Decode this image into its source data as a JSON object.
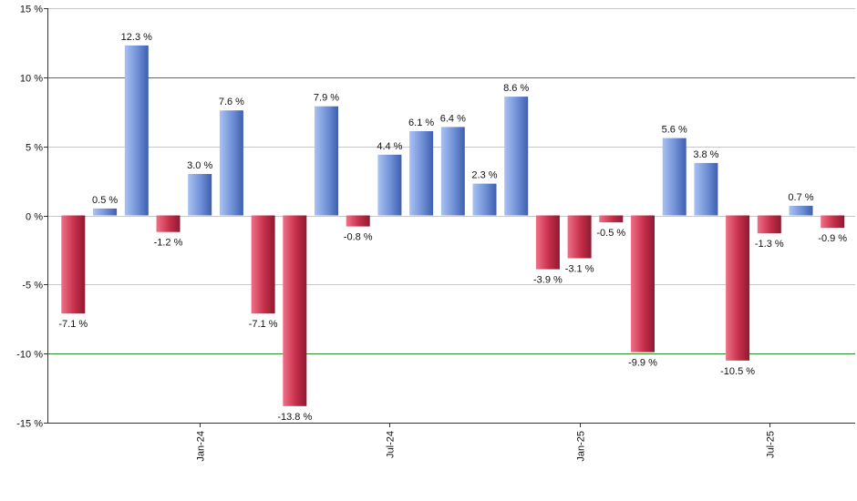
{
  "chart_data": {
    "type": "bar",
    "title": "",
    "xlabel": "",
    "ylabel": "",
    "ylim": [
      -15,
      15
    ],
    "y_ticks": [
      15,
      10,
      5,
      0,
      -5,
      -10,
      -15
    ],
    "y_tick_labels": [
      "15 %",
      "10 %",
      "5 %",
      "0 %",
      "-5 %",
      "-10 %",
      "-15 %"
    ],
    "reference_lines": [
      10,
      -10
    ],
    "x_tick_labels": [
      {
        "label": "Jan-24",
        "index": 4
      },
      {
        "label": "Jul-24",
        "index": 10
      },
      {
        "label": "Jan-25",
        "index": 16
      },
      {
        "label": "Jul-25",
        "index": 22
      }
    ],
    "values": [
      -7.1,
      0.5,
      12.3,
      -1.2,
      3.0,
      7.6,
      -7.1,
      -13.8,
      7.9,
      -0.8,
      4.4,
      6.1,
      6.4,
      2.3,
      8.6,
      -3.9,
      -3.1,
      -0.5,
      -9.9,
      5.6,
      3.8,
      -10.5,
      -1.3,
      0.7,
      -0.9
    ],
    "labels": [
      "-7.1 %",
      "0.5 %",
      "12.3 %",
      "-1.2 %",
      "3.0 %",
      "7.6 %",
      "-7.1 %",
      "-13.8 %",
      "7.9 %",
      "-0.8 %",
      "4.4 %",
      "6.1 %",
      "6.4 %",
      "2.3 %",
      "8.6 %",
      "-3.9 %",
      "-3.1 %",
      "-0.5 %",
      "-9.9 %",
      "5.6 %",
      "3.8 %",
      "-10.5 %",
      "-1.3 %",
      "0.7 %",
      "-0.9 %"
    ],
    "grid": true,
    "colors": {
      "positive": "#7d9ee0",
      "negative": "#c62f4a",
      "reference_line": "#2e8b2e",
      "grid": "#c8c8c8",
      "axis": "#333333"
    }
  }
}
